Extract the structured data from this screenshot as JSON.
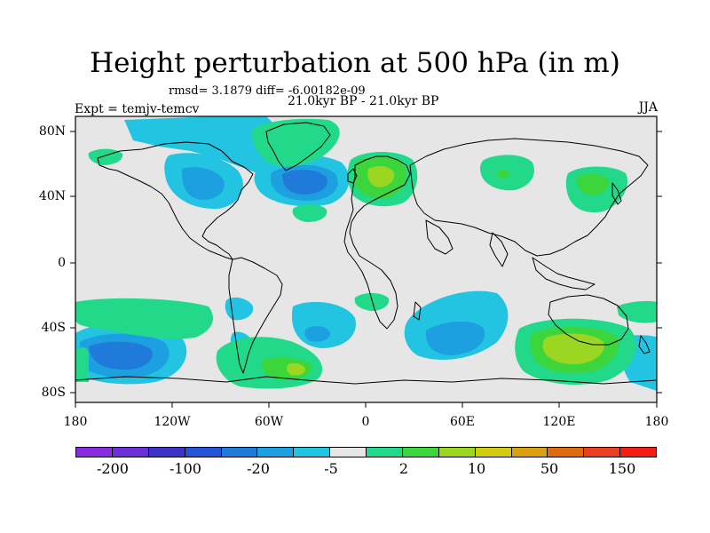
{
  "title": "Height perturbation at 500 hPa (in m)",
  "stats": "rmsd= 3.1879  diff= -6.00182e-09",
  "expt": "Expt = temjv-temcv",
  "period": "21.0kyr BP - 21.0kyr BP",
  "season": "JJA",
  "lat_labels": [
    "80N",
    "40N",
    "0",
    "40S",
    "80S"
  ],
  "lon_labels": [
    "180",
    "120W",
    "60W",
    "0",
    "60E",
    "120E",
    "180"
  ],
  "colorbar": {
    "labels": [
      "-200",
      "-100",
      "-20",
      "-5",
      "2",
      "10",
      "50",
      "150"
    ],
    "colors": [
      "#8a2be2",
      "#6a2fd6",
      "#3c34c8",
      "#2154d6",
      "#1f7ad9",
      "#1ca0e0",
      "#22c4e2",
      "#e6e6e6",
      "#22d98a",
      "#3cd63c",
      "#9ad622",
      "#d2cc10",
      "#dba010",
      "#e06a10",
      "#e84020",
      "#f21e12"
    ]
  },
  "map_colors": {
    "ocean_background": "#e6e6e6",
    "light_blue": "#22c4e2",
    "mid_blue": "#1ca0e0",
    "deep_blue": "#1f7ad9",
    "green": "#22d98a",
    "bright_green": "#3cd63c",
    "yellow_green": "#9ad622",
    "coastline": "#000000"
  }
}
